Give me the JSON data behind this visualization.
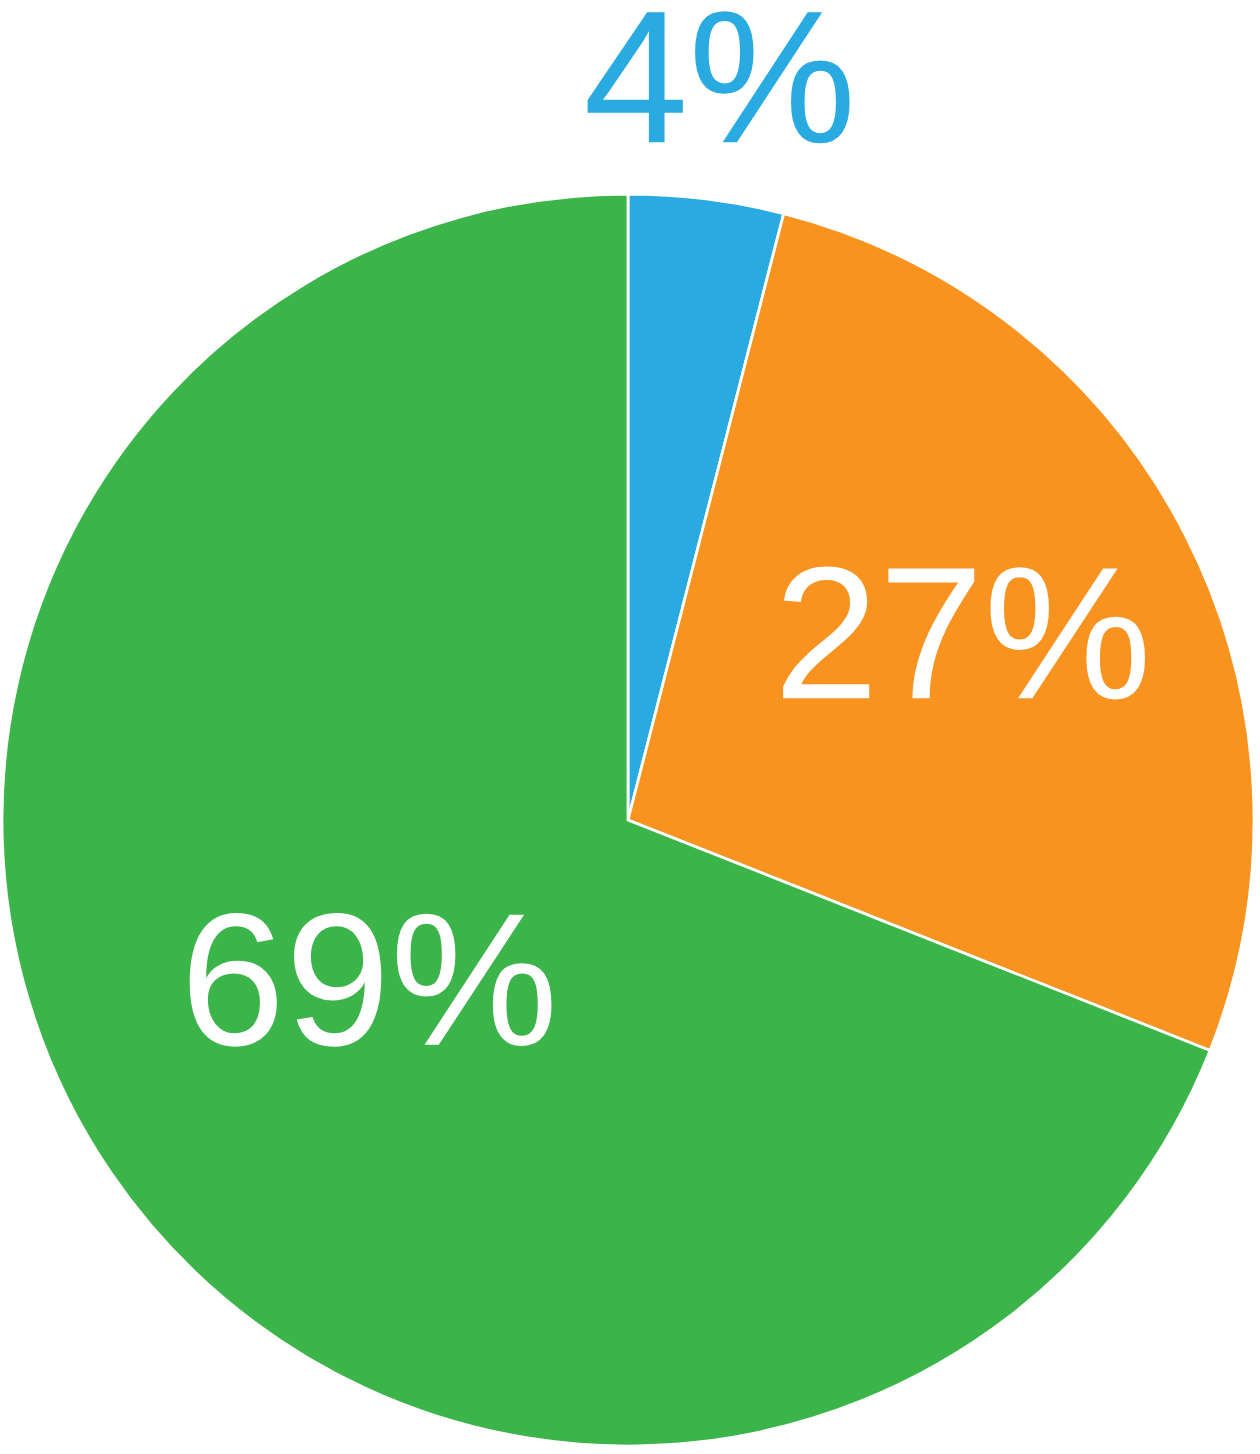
{
  "chart_data": {
    "type": "pie",
    "categories": [
      null,
      null,
      null
    ],
    "values": [
      4,
      27,
      69
    ],
    "colors": [
      "#29abe2",
      "#f7931e",
      "#3bb54a"
    ],
    "value_labels": [
      "4%",
      "27%",
      "69%"
    ]
  }
}
